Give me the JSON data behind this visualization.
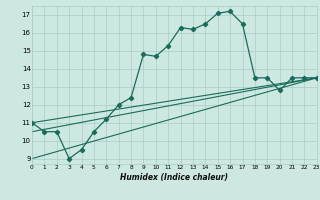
{
  "xlabel": "Humidex (Indice chaleur)",
  "bg_color": "#cce8e0",
  "grid_color": "#aacccc",
  "line_color": "#1a6b5a",
  "xlim": [
    0,
    23
  ],
  "ylim": [
    8.7,
    17.5
  ],
  "yticks": [
    9,
    10,
    11,
    12,
    13,
    14,
    15,
    16,
    17
  ],
  "xticks": [
    0,
    1,
    2,
    3,
    4,
    5,
    6,
    7,
    8,
    9,
    10,
    11,
    12,
    13,
    14,
    15,
    16,
    17,
    18,
    19,
    20,
    21,
    22,
    23
  ],
  "curve1_x": [
    0,
    1,
    2,
    3,
    4,
    5,
    6,
    7,
    8,
    9,
    10,
    11,
    12,
    13,
    14,
    15,
    16,
    17,
    18,
    19,
    20,
    21,
    22,
    23
  ],
  "curve1_y": [
    11.0,
    10.5,
    10.5,
    9.0,
    9.5,
    10.5,
    11.2,
    12.0,
    12.4,
    14.8,
    14.7,
    15.3,
    16.3,
    16.2,
    16.5,
    17.1,
    17.2,
    16.5,
    13.5,
    13.5,
    12.8,
    13.5,
    13.5,
    13.5
  ],
  "curve2_x": [
    0,
    23
  ],
  "curve2_y": [
    11.0,
    13.5
  ],
  "curve3_x": [
    0,
    23
  ],
  "curve3_y": [
    10.5,
    13.5
  ],
  "curve4_x": [
    0,
    23
  ],
  "curve4_y": [
    9.0,
    13.5
  ]
}
